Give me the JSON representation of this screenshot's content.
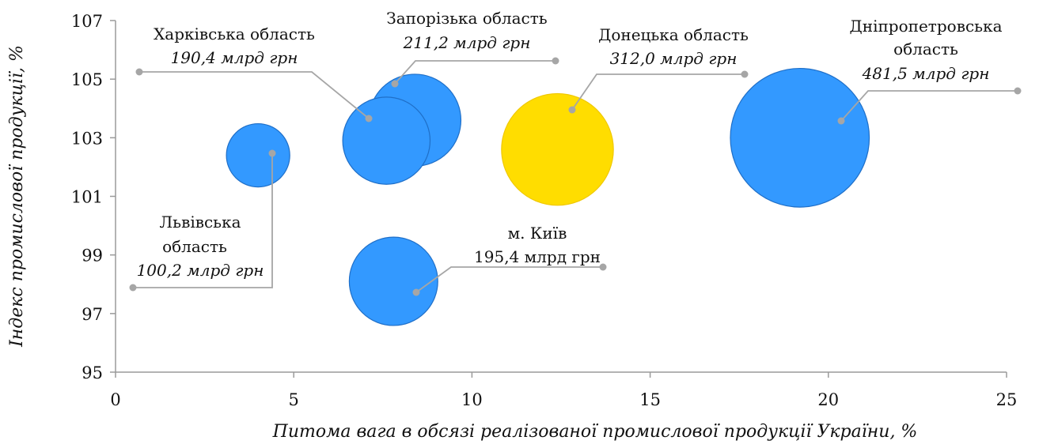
{
  "chart_data": {
    "type": "scatter",
    "subtype": "bubble",
    "title": "",
    "xlabel": "Питома вага в обсязі реалізованої промислової продукції України, %",
    "ylabel": "Індекс промислової продукції, %",
    "xlim": [
      0,
      25
    ],
    "ylim": [
      95,
      107
    ],
    "xticks": [
      "0",
      "5",
      "10",
      "15",
      "20",
      "25"
    ],
    "yticks": [
      "95",
      "97",
      "99",
      "101",
      "103",
      "105",
      "107"
    ],
    "grid": false,
    "legend": "none",
    "colors": {
      "default": "#3399ff",
      "highlight": "#ffdd00",
      "leader": "#a6a6a6"
    },
    "points": [
      {
        "id": "lviv",
        "name_lines": [
          "Львівська",
          "область"
        ],
        "value": "100,2 млрд грн",
        "size": 100.2,
        "x": 4.0,
        "y": 102.4,
        "highlight": false
      },
      {
        "id": "zaporizhzhia",
        "name_lines": [
          "Запорізька область"
        ],
        "value": "211,2 млрд грн",
        "size": 211.2,
        "x": 8.4,
        "y": 103.6,
        "highlight": false
      },
      {
        "id": "kharkiv",
        "name_lines": [
          "Харківська область"
        ],
        "value": "190,4 млрд грн",
        "size": 190.4,
        "x": 7.6,
        "y": 102.9,
        "highlight": false
      },
      {
        "id": "kyiv",
        "name_lines": [
          "м. Київ"
        ],
        "value": "195,4 млрд грн",
        "size": 195.4,
        "x": 7.8,
        "y": 98.1,
        "highlight": false
      },
      {
        "id": "donetsk",
        "name_lines": [
          "Донецька область"
        ],
        "value": "312,0 млрд грн",
        "size": 312.0,
        "x": 12.4,
        "y": 102.6,
        "highlight": true
      },
      {
        "id": "dnipro",
        "name_lines": [
          "Дніпропетровська",
          "область"
        ],
        "value": "481,5 млрд грн",
        "size": 481.5,
        "x": 19.2,
        "y": 103.0,
        "highlight": false
      }
    ]
  }
}
